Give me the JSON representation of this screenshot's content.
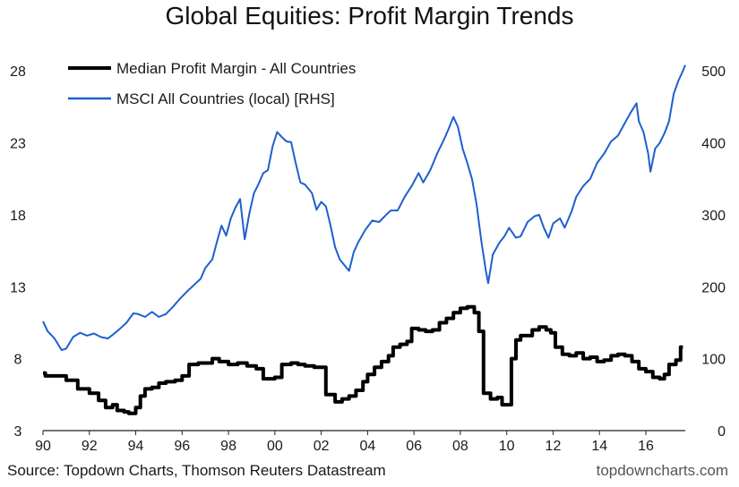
{
  "chart_data": {
    "type": "line",
    "title": "Global Equities: Profit Margin Trends",
    "x_tick_labels": [
      "90",
      "92",
      "94",
      "96",
      "98",
      "00",
      "02",
      "04",
      "06",
      "08",
      "10",
      "12",
      "14",
      "16"
    ],
    "x_range": [
      1990,
      2017.7
    ],
    "left_axis": {
      "ticks": [
        "3",
        "8",
        "13",
        "18",
        "23",
        "28"
      ],
      "range": [
        3,
        31
      ]
    },
    "right_axis": {
      "ticks": [
        "0",
        "100",
        "200",
        "300",
        "400",
        "500"
      ],
      "range": [
        0,
        560
      ]
    },
    "legend_position": "top-left",
    "series": [
      {
        "name": "Median Profit Margin - All Countries",
        "axis": "left",
        "color": "#000000",
        "step": true,
        "points": [
          [
            1990.0,
            7.0
          ],
          [
            1990.1,
            6.8
          ],
          [
            1991.0,
            6.5
          ],
          [
            1991.5,
            5.9
          ],
          [
            1992.0,
            5.6
          ],
          [
            1992.4,
            5.1
          ],
          [
            1992.7,
            4.6
          ],
          [
            1993.0,
            4.8
          ],
          [
            1993.2,
            4.4
          ],
          [
            1993.5,
            4.3
          ],
          [
            1993.7,
            4.2
          ],
          [
            1994.0,
            4.6
          ],
          [
            1994.2,
            5.4
          ],
          [
            1994.4,
            5.9
          ],
          [
            1994.7,
            6.0
          ],
          [
            1995.0,
            6.3
          ],
          [
            1995.3,
            6.4
          ],
          [
            1995.7,
            6.5
          ],
          [
            1996.0,
            6.8
          ],
          [
            1996.3,
            7.6
          ],
          [
            1996.7,
            7.7
          ],
          [
            1997.0,
            7.7
          ],
          [
            1997.3,
            8.0
          ],
          [
            1997.6,
            7.8
          ],
          [
            1998.0,
            7.6
          ],
          [
            1998.4,
            7.7
          ],
          [
            1998.8,
            7.5
          ],
          [
            1999.2,
            7.3
          ],
          [
            1999.5,
            6.6
          ],
          [
            1999.8,
            6.6
          ],
          [
            2000.0,
            6.7
          ],
          [
            2000.3,
            7.6
          ],
          [
            2000.7,
            7.7
          ],
          [
            2001.0,
            7.6
          ],
          [
            2001.3,
            7.5
          ],
          [
            2001.7,
            7.4
          ],
          [
            2002.0,
            7.4
          ],
          [
            2002.2,
            5.5
          ],
          [
            2002.6,
            5.0
          ],
          [
            2002.9,
            5.2
          ],
          [
            2003.2,
            5.4
          ],
          [
            2003.5,
            5.8
          ],
          [
            2003.8,
            6.4
          ],
          [
            2004.0,
            6.9
          ],
          [
            2004.3,
            7.4
          ],
          [
            2004.6,
            7.8
          ],
          [
            2004.9,
            8.2
          ],
          [
            2005.1,
            8.8
          ],
          [
            2005.4,
            9.0
          ],
          [
            2005.7,
            9.2
          ],
          [
            2005.9,
            10.1
          ],
          [
            2006.2,
            10.0
          ],
          [
            2006.5,
            9.9
          ],
          [
            2006.8,
            10.0
          ],
          [
            2007.1,
            10.5
          ],
          [
            2007.4,
            10.8
          ],
          [
            2007.7,
            11.2
          ],
          [
            2008.0,
            11.5
          ],
          [
            2008.3,
            11.6
          ],
          [
            2008.6,
            11.2
          ],
          [
            2008.8,
            9.9
          ],
          [
            2009.0,
            5.6
          ],
          [
            2009.3,
            5.2
          ],
          [
            2009.6,
            5.3
          ],
          [
            2009.8,
            4.8
          ],
          [
            2010.0,
            4.8
          ],
          [
            2010.2,
            8.0
          ],
          [
            2010.4,
            9.3
          ],
          [
            2010.6,
            9.6
          ],
          [
            2010.9,
            9.6
          ],
          [
            2011.1,
            10.0
          ],
          [
            2011.4,
            10.2
          ],
          [
            2011.7,
            10.0
          ],
          [
            2011.9,
            9.8
          ],
          [
            2012.1,
            8.8
          ],
          [
            2012.4,
            8.3
          ],
          [
            2012.7,
            8.2
          ],
          [
            2013.0,
            8.4
          ],
          [
            2013.3,
            8.0
          ],
          [
            2013.6,
            8.1
          ],
          [
            2013.9,
            7.8
          ],
          [
            2014.2,
            7.9
          ],
          [
            2014.5,
            8.2
          ],
          [
            2014.8,
            8.3
          ],
          [
            2015.1,
            8.2
          ],
          [
            2015.4,
            7.8
          ],
          [
            2015.7,
            7.3
          ],
          [
            2016.0,
            7.1
          ],
          [
            2016.3,
            6.7
          ],
          [
            2016.6,
            6.6
          ],
          [
            2016.8,
            6.9
          ],
          [
            2017.0,
            7.6
          ],
          [
            2017.3,
            7.9
          ],
          [
            2017.5,
            8.8
          ],
          [
            2017.6,
            8.8
          ]
        ]
      },
      {
        "name": "MSCI All Countries (local) [RHS]",
        "axis": "right",
        "color": "#1f5fcf",
        "step": false,
        "points": [
          [
            1990.0,
            152
          ],
          [
            1990.2,
            138
          ],
          [
            1990.5,
            128
          ],
          [
            1990.8,
            112
          ],
          [
            1991.0,
            114
          ],
          [
            1991.3,
            130
          ],
          [
            1991.6,
            136
          ],
          [
            1991.9,
            132
          ],
          [
            1992.2,
            135
          ],
          [
            1992.5,
            130
          ],
          [
            1992.8,
            128
          ],
          [
            1993.0,
            133
          ],
          [
            1993.3,
            141
          ],
          [
            1993.6,
            150
          ],
          [
            1993.9,
            163
          ],
          [
            1994.1,
            162
          ],
          [
            1994.4,
            158
          ],
          [
            1994.7,
            165
          ],
          [
            1995.0,
            158
          ],
          [
            1995.3,
            162
          ],
          [
            1995.6,
            172
          ],
          [
            1995.9,
            183
          ],
          [
            1996.2,
            193
          ],
          [
            1996.5,
            202
          ],
          [
            1996.8,
            211
          ],
          [
            1997.0,
            226
          ],
          [
            1997.3,
            238
          ],
          [
            1997.5,
            262
          ],
          [
            1997.7,
            285
          ],
          [
            1997.9,
            271
          ],
          [
            1998.1,
            295
          ],
          [
            1998.3,
            310
          ],
          [
            1998.5,
            322
          ],
          [
            1998.7,
            266
          ],
          [
            1998.9,
            302
          ],
          [
            1999.1,
            330
          ],
          [
            1999.3,
            343
          ],
          [
            1999.5,
            358
          ],
          [
            1999.7,
            362
          ],
          [
            1999.9,
            395
          ],
          [
            2000.1,
            415
          ],
          [
            2000.3,
            408
          ],
          [
            2000.5,
            402
          ],
          [
            2000.7,
            401
          ],
          [
            2000.9,
            372
          ],
          [
            2001.1,
            345
          ],
          [
            2001.3,
            342
          ],
          [
            2001.6,
            330
          ],
          [
            2001.8,
            307
          ],
          [
            2002.0,
            318
          ],
          [
            2002.2,
            312
          ],
          [
            2002.4,
            285
          ],
          [
            2002.6,
            255
          ],
          [
            2002.8,
            238
          ],
          [
            2003.0,
            230
          ],
          [
            2003.2,
            222
          ],
          [
            2003.4,
            248
          ],
          [
            2003.6,
            262
          ],
          [
            2003.9,
            279
          ],
          [
            2004.2,
            292
          ],
          [
            2004.5,
            290
          ],
          [
            2004.8,
            300
          ],
          [
            2005.0,
            306
          ],
          [
            2005.3,
            306
          ],
          [
            2005.6,
            325
          ],
          [
            2005.9,
            340
          ],
          [
            2006.2,
            358
          ],
          [
            2006.4,
            345
          ],
          [
            2006.7,
            362
          ],
          [
            2007.0,
            385
          ],
          [
            2007.3,
            405
          ],
          [
            2007.5,
            420
          ],
          [
            2007.7,
            436
          ],
          [
            2007.9,
            422
          ],
          [
            2008.1,
            392
          ],
          [
            2008.3,
            372
          ],
          [
            2008.5,
            350
          ],
          [
            2008.7,
            315
          ],
          [
            2008.9,
            265
          ],
          [
            2009.1,
            222
          ],
          [
            2009.2,
            205
          ],
          [
            2009.4,
            245
          ],
          [
            2009.7,
            262
          ],
          [
            2009.9,
            270
          ],
          [
            2010.1,
            282
          ],
          [
            2010.4,
            268
          ],
          [
            2010.6,
            270
          ],
          [
            2010.9,
            290
          ],
          [
            2011.2,
            298
          ],
          [
            2011.4,
            300
          ],
          [
            2011.6,
            282
          ],
          [
            2011.8,
            268
          ],
          [
            2012.0,
            288
          ],
          [
            2012.3,
            295
          ],
          [
            2012.5,
            282
          ],
          [
            2012.8,
            305
          ],
          [
            2013.0,
            325
          ],
          [
            2013.3,
            340
          ],
          [
            2013.6,
            350
          ],
          [
            2013.9,
            372
          ],
          [
            2014.2,
            385
          ],
          [
            2014.5,
            402
          ],
          [
            2014.8,
            410
          ],
          [
            2015.1,
            428
          ],
          [
            2015.4,
            445
          ],
          [
            2015.6,
            455
          ],
          [
            2015.7,
            430
          ],
          [
            2015.9,
            415
          ],
          [
            2016.1,
            385
          ],
          [
            2016.2,
            360
          ],
          [
            2016.4,
            392
          ],
          [
            2016.6,
            400
          ],
          [
            2016.8,
            413
          ],
          [
            2017.0,
            430
          ],
          [
            2017.2,
            468
          ],
          [
            2017.4,
            486
          ],
          [
            2017.6,
            500
          ],
          [
            2017.7,
            508
          ]
        ]
      }
    ]
  },
  "footer": {
    "source": "Source: Topdown Charts, Thomson Reuters Datastream",
    "brand": "topdowncharts.com"
  }
}
